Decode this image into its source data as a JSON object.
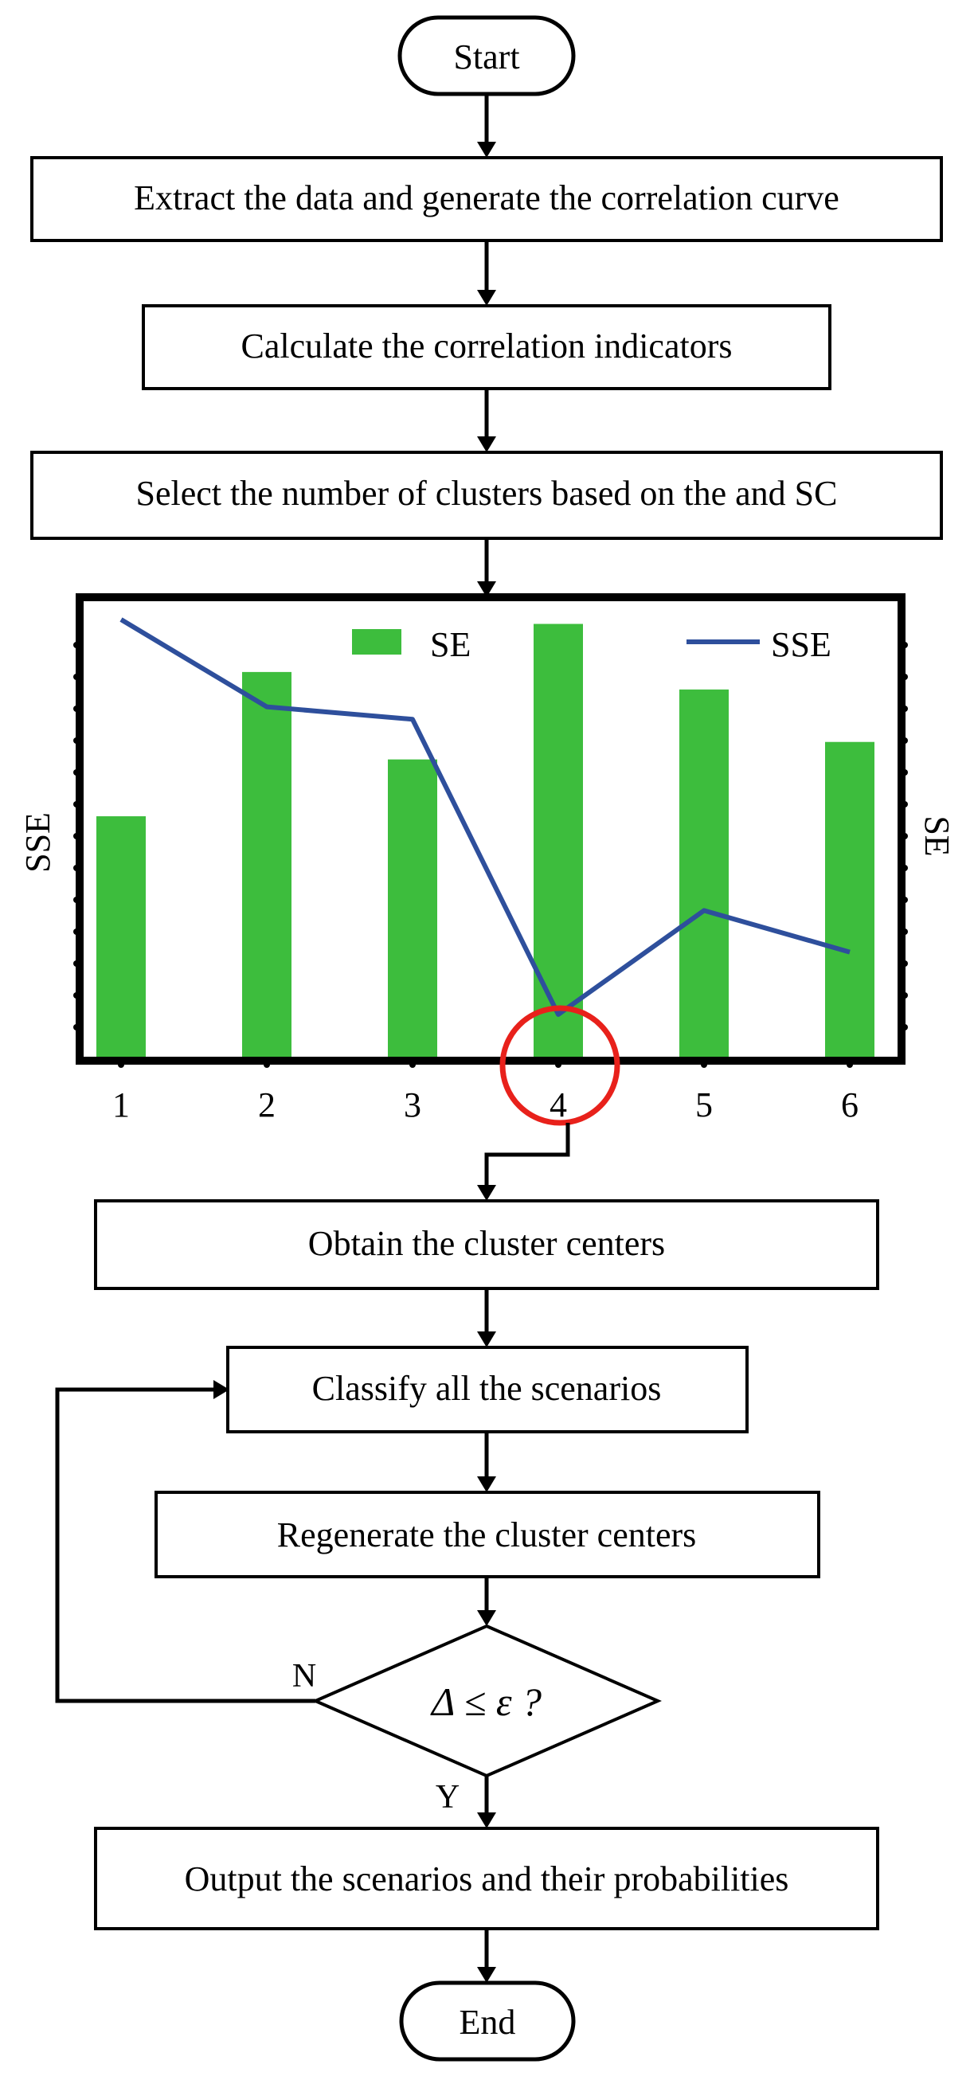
{
  "flow": {
    "start": "Start",
    "step1": "Extract the data and generate the correlation curve",
    "step2": "Calculate the correlation indicators",
    "step3": "Select the number of clusters based on the and SC",
    "step4": "Obtain the cluster centers",
    "step5": "Classify all the scenarios",
    "step6": "Regenerate the cluster centers",
    "decision": "Δ ≤ ε ?",
    "no_label": "N",
    "yes_label": "Y",
    "step7": "Output the scenarios and their probabilities",
    "end": "End"
  },
  "chart_data": {
    "type": "bar",
    "categories": [
      "1",
      "2",
      "3",
      "4",
      "5",
      "6"
    ],
    "series": [
      {
        "name": "SE",
        "kind": "bar",
        "values": [
          0.55,
          0.88,
          0.68,
          0.99,
          0.84,
          0.72
        ]
      },
      {
        "name": "SSE",
        "kind": "line",
        "values": [
          1.0,
          0.79,
          0.76,
          0.05,
          0.3,
          0.2
        ]
      }
    ],
    "ylabel_left": "SSE",
    "ylabel_right": "SE",
    "ylim": [
      0,
      1
    ],
    "highlight_category": "4",
    "legend": "top",
    "grid": false,
    "colors": {
      "bar": "#3dbd3d",
      "line": "#2e4f9c",
      "highlight": "#e8211b"
    }
  }
}
